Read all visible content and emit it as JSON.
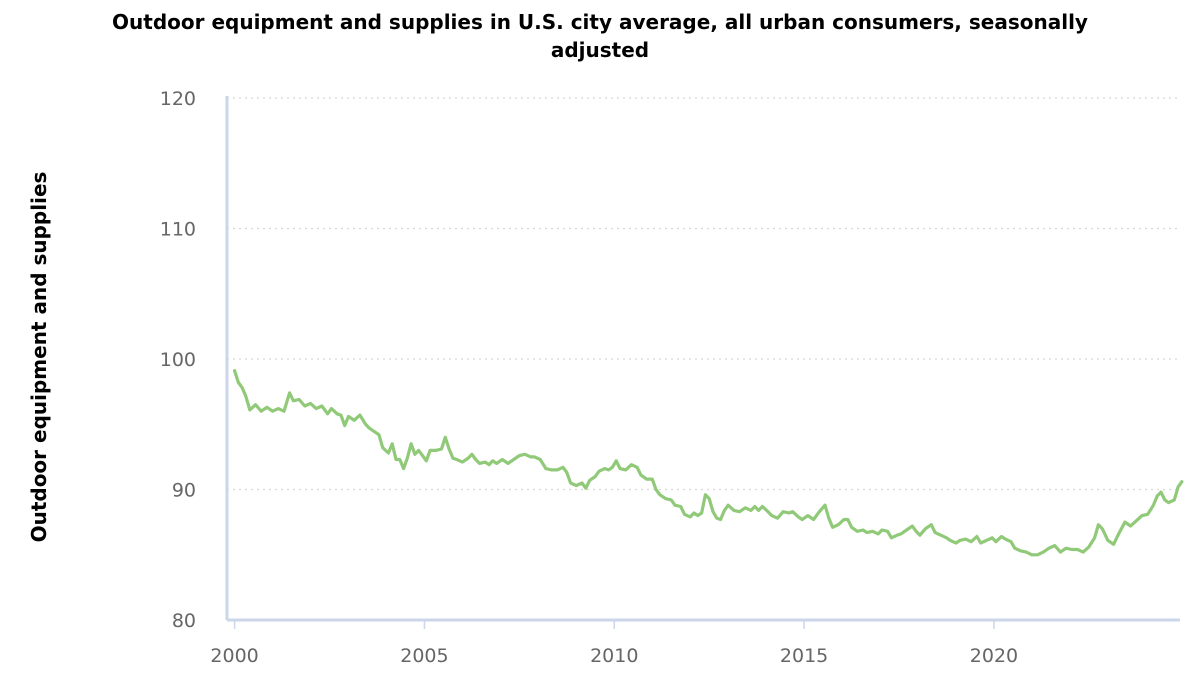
{
  "chart_data": {
    "type": "line",
    "title": "Outdoor equipment and supplies in U.S. city average, all urban consumers, seasonally adjusted",
    "xlabel": "",
    "ylabel": "Outdoor equipment and supplies",
    "xlim": [
      1999.8,
      2024.9
    ],
    "ylim": [
      80,
      120
    ],
    "x_ticks": [
      2000,
      2005,
      2010,
      2015,
      2020
    ],
    "x_tick_labels": [
      "2000",
      "2005",
      "2010",
      "2015",
      "2020"
    ],
    "y_ticks": [
      80,
      90,
      100,
      110,
      120
    ],
    "y_tick_labels": [
      "80",
      "90",
      "100",
      "110",
      "120"
    ],
    "grid": "horizontal dotted",
    "line_color": "#90c978",
    "series": [
      {
        "name": "Outdoor equipment and supplies",
        "points": [
          [
            2000.0,
            99.1
          ],
          [
            2000.1,
            98.2
          ],
          [
            2000.2,
            97.8
          ],
          [
            2000.3,
            97.1
          ],
          [
            2000.4,
            96.1
          ],
          [
            2000.55,
            96.5
          ],
          [
            2000.7,
            96.0
          ],
          [
            2000.85,
            96.3
          ],
          [
            2001.0,
            96.0
          ],
          [
            2001.15,
            96.2
          ],
          [
            2001.3,
            96.0
          ],
          [
            2001.45,
            97.4
          ],
          [
            2001.55,
            96.8
          ],
          [
            2001.7,
            96.9
          ],
          [
            2001.85,
            96.4
          ],
          [
            2002.0,
            96.6
          ],
          [
            2002.15,
            96.2
          ],
          [
            2002.3,
            96.4
          ],
          [
            2002.45,
            95.8
          ],
          [
            2002.55,
            96.2
          ],
          [
            2002.7,
            95.8
          ],
          [
            2002.8,
            95.7
          ],
          [
            2002.9,
            94.9
          ],
          [
            2003.0,
            95.6
          ],
          [
            2003.15,
            95.3
          ],
          [
            2003.3,
            95.7
          ],
          [
            2003.45,
            95.0
          ],
          [
            2003.55,
            94.7
          ],
          [
            2003.65,
            94.5
          ],
          [
            2003.8,
            94.2
          ],
          [
            2003.9,
            93.2
          ],
          [
            2004.05,
            92.8
          ],
          [
            2004.15,
            93.5
          ],
          [
            2004.25,
            92.3
          ],
          [
            2004.35,
            92.3
          ],
          [
            2004.45,
            91.6
          ],
          [
            2004.55,
            92.4
          ],
          [
            2004.65,
            93.5
          ],
          [
            2004.75,
            92.7
          ],
          [
            2004.85,
            93.0
          ],
          [
            2004.95,
            92.6
          ],
          [
            2005.05,
            92.2
          ],
          [
            2005.15,
            93.0
          ],
          [
            2005.3,
            93.0
          ],
          [
            2005.45,
            93.1
          ],
          [
            2005.55,
            94.0
          ],
          [
            2005.65,
            93.1
          ],
          [
            2005.75,
            92.4
          ],
          [
            2005.85,
            92.3
          ],
          [
            2006.0,
            92.1
          ],
          [
            2006.15,
            92.4
          ],
          [
            2006.25,
            92.7
          ],
          [
            2006.35,
            92.3
          ],
          [
            2006.45,
            92.0
          ],
          [
            2006.6,
            92.1
          ],
          [
            2006.7,
            91.9
          ],
          [
            2006.8,
            92.2
          ],
          [
            2006.9,
            92.0
          ],
          [
            2007.05,
            92.3
          ],
          [
            2007.2,
            92.0
          ],
          [
            2007.35,
            92.3
          ],
          [
            2007.5,
            92.6
          ],
          [
            2007.65,
            92.7
          ],
          [
            2007.8,
            92.5
          ],
          [
            2007.9,
            92.5
          ],
          [
            2008.05,
            92.3
          ],
          [
            2008.2,
            91.6
          ],
          [
            2008.35,
            91.5
          ],
          [
            2008.5,
            91.5
          ],
          [
            2008.65,
            91.7
          ],
          [
            2008.75,
            91.3
          ],
          [
            2008.85,
            90.5
          ],
          [
            2009.0,
            90.3
          ],
          [
            2009.15,
            90.5
          ],
          [
            2009.25,
            90.1
          ],
          [
            2009.35,
            90.7
          ],
          [
            2009.5,
            91.0
          ],
          [
            2009.6,
            91.4
          ],
          [
            2009.75,
            91.6
          ],
          [
            2009.85,
            91.5
          ],
          [
            2009.95,
            91.7
          ],
          [
            2010.05,
            92.2
          ],
          [
            2010.15,
            91.6
          ],
          [
            2010.3,
            91.5
          ],
          [
            2010.45,
            91.9
          ],
          [
            2010.6,
            91.7
          ],
          [
            2010.7,
            91.1
          ],
          [
            2010.85,
            90.8
          ],
          [
            2011.0,
            90.8
          ],
          [
            2011.1,
            90.0
          ],
          [
            2011.2,
            89.6
          ],
          [
            2011.35,
            89.3
          ],
          [
            2011.5,
            89.2
          ],
          [
            2011.6,
            88.8
          ],
          [
            2011.75,
            88.7
          ],
          [
            2011.85,
            88.1
          ],
          [
            2012.0,
            87.9
          ],
          [
            2012.1,
            88.2
          ],
          [
            2012.2,
            88.0
          ],
          [
            2012.3,
            88.2
          ],
          [
            2012.4,
            89.6
          ],
          [
            2012.5,
            89.3
          ],
          [
            2012.6,
            88.3
          ],
          [
            2012.7,
            87.8
          ],
          [
            2012.8,
            87.7
          ],
          [
            2012.9,
            88.4
          ],
          [
            2013.0,
            88.8
          ],
          [
            2013.15,
            88.4
          ],
          [
            2013.3,
            88.3
          ],
          [
            2013.45,
            88.6
          ],
          [
            2013.6,
            88.4
          ],
          [
            2013.7,
            88.7
          ],
          [
            2013.8,
            88.4
          ],
          [
            2013.9,
            88.7
          ],
          [
            2014.05,
            88.3
          ],
          [
            2014.15,
            88.0
          ],
          [
            2014.3,
            87.8
          ],
          [
            2014.45,
            88.3
          ],
          [
            2014.6,
            88.2
          ],
          [
            2014.7,
            88.3
          ],
          [
            2014.85,
            87.9
          ],
          [
            2014.95,
            87.7
          ],
          [
            2015.1,
            88.0
          ],
          [
            2015.25,
            87.7
          ],
          [
            2015.4,
            88.3
          ],
          [
            2015.55,
            88.8
          ],
          [
            2015.65,
            87.8
          ],
          [
            2015.75,
            87.1
          ],
          [
            2015.9,
            87.3
          ],
          [
            2016.05,
            87.7
          ],
          [
            2016.15,
            87.7
          ],
          [
            2016.25,
            87.1
          ],
          [
            2016.4,
            86.8
          ],
          [
            2016.55,
            86.9
          ],
          [
            2016.65,
            86.7
          ],
          [
            2016.8,
            86.8
          ],
          [
            2016.95,
            86.6
          ],
          [
            2017.05,
            86.9
          ],
          [
            2017.2,
            86.8
          ],
          [
            2017.3,
            86.3
          ],
          [
            2017.45,
            86.5
          ],
          [
            2017.55,
            86.6
          ],
          [
            2017.7,
            86.9
          ],
          [
            2017.85,
            87.2
          ],
          [
            2017.95,
            86.8
          ],
          [
            2018.05,
            86.5
          ],
          [
            2018.2,
            87.0
          ],
          [
            2018.35,
            87.3
          ],
          [
            2018.45,
            86.7
          ],
          [
            2018.6,
            86.5
          ],
          [
            2018.75,
            86.3
          ],
          [
            2018.85,
            86.1
          ],
          [
            2019.0,
            85.9
          ],
          [
            2019.1,
            86.1
          ],
          [
            2019.25,
            86.2
          ],
          [
            2019.4,
            86.0
          ],
          [
            2019.55,
            86.4
          ],
          [
            2019.65,
            85.9
          ],
          [
            2019.8,
            86.1
          ],
          [
            2019.95,
            86.3
          ],
          [
            2020.05,
            86.0
          ],
          [
            2020.2,
            86.4
          ],
          [
            2020.3,
            86.2
          ],
          [
            2020.45,
            86.0
          ],
          [
            2020.55,
            85.5
          ],
          [
            2020.7,
            85.3
          ],
          [
            2020.85,
            85.2
          ],
          [
            2021.0,
            85.0
          ],
          [
            2021.15,
            85.0
          ],
          [
            2021.3,
            85.2
          ],
          [
            2021.45,
            85.5
          ],
          [
            2021.6,
            85.7
          ],
          [
            2021.75,
            85.2
          ],
          [
            2021.9,
            85.5
          ],
          [
            2022.05,
            85.4
          ],
          [
            2022.2,
            85.4
          ],
          [
            2022.35,
            85.2
          ],
          [
            2022.5,
            85.6
          ],
          [
            2022.65,
            86.3
          ],
          [
            2022.75,
            87.3
          ],
          [
            2022.85,
            87.0
          ],
          [
            2023.0,
            86.1
          ],
          [
            2023.15,
            85.8
          ],
          [
            2023.3,
            86.7
          ],
          [
            2023.45,
            87.5
          ],
          [
            2023.6,
            87.2
          ],
          [
            2023.75,
            87.6
          ],
          [
            2023.9,
            88.0
          ],
          [
            2024.05,
            88.1
          ],
          [
            2024.2,
            88.8
          ],
          [
            2024.3,
            89.5
          ],
          [
            2024.4,
            89.8
          ],
          [
            2024.5,
            89.2
          ],
          [
            2024.6,
            89.0
          ],
          [
            2024.75,
            89.2
          ],
          [
            2024.85,
            90.2
          ],
          [
            2024.95,
            90.6
          ]
        ]
      }
    ]
  }
}
